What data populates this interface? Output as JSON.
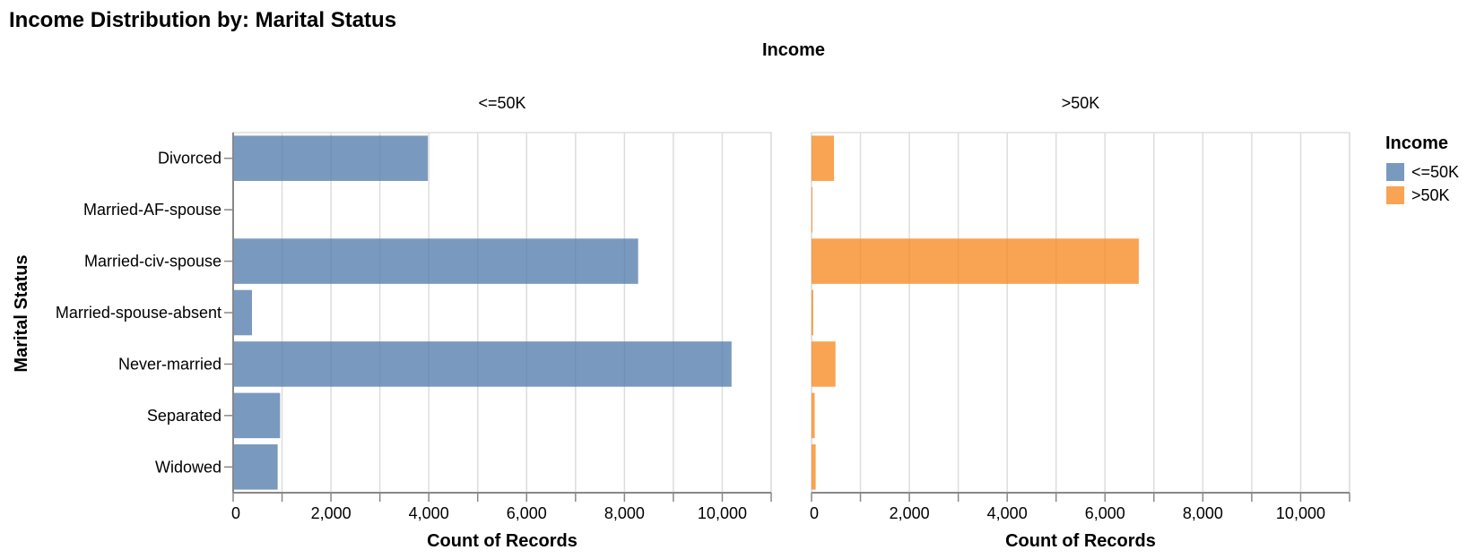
{
  "chart_data": {
    "type": "bar",
    "title": "Income Distribution by: Marital Status",
    "facet_title": "Income",
    "xlabel": "Count of Records",
    "ylabel": "Marital Status",
    "xlim": [
      0,
      11000
    ],
    "x_ticks": [
      "0",
      "2,000",
      "4,000",
      "6,000",
      "8,000",
      "10,000"
    ],
    "x_tick_values": [
      0,
      2000,
      4000,
      6000,
      8000,
      10000
    ],
    "grid": true,
    "legend": {
      "title": "Income",
      "placement": "right"
    },
    "categories": [
      "Divorced",
      "Married-AF-spouse",
      "Married-civ-spouse",
      "Married-spouse-absent",
      "Never-married",
      "Separated",
      "Widowed"
    ],
    "series": [
      {
        "name": "<=50K",
        "color": "#4c78a8",
        "values": [
          3980,
          13,
          8280,
          385,
          10190,
          960,
          910
        ]
      },
      {
        "name": ">50K",
        "color": "#f58518",
        "values": [
          460,
          10,
          6690,
          35,
          490,
          65,
          85
        ]
      }
    ]
  }
}
